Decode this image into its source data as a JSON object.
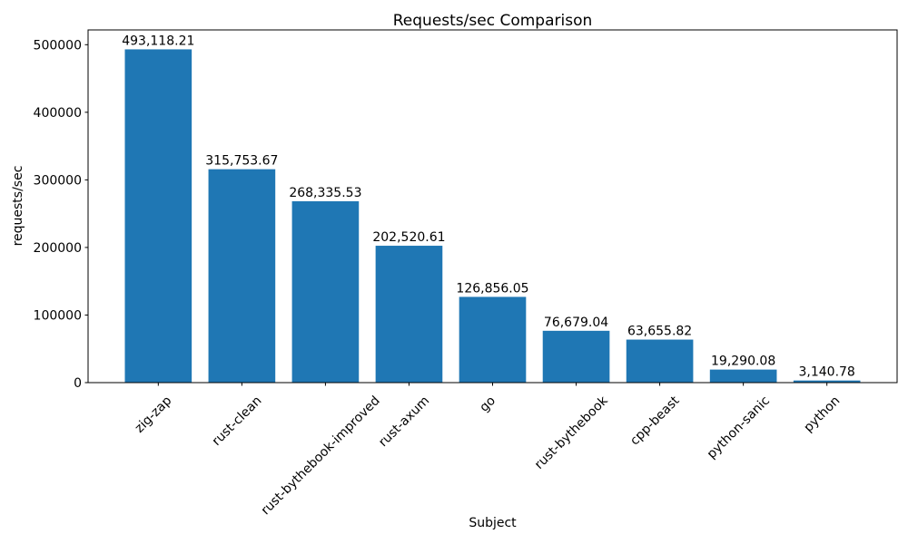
{
  "chart_data": {
    "type": "bar",
    "title": "Requests/sec Comparison",
    "xlabel": "Subject",
    "ylabel": "requests/sec",
    "categories": [
      "zig-zap",
      "rust-clean",
      "rust-bythebook-improved",
      "rust-axum",
      "go",
      "rust-bythebook",
      "cpp-beast",
      "python-sanic",
      "python"
    ],
    "values": [
      493118.21,
      315753.67,
      268335.53,
      202520.61,
      126856.05,
      76679.04,
      63655.82,
      19290.08,
      3140.78
    ],
    "value_labels": [
      "493,118.21",
      "315,753.67",
      "268,335.53",
      "202,520.61",
      "126,856.05",
      "76,679.04",
      "63,655.82",
      "19,290.08",
      "3,140.78"
    ],
    "ytick_values": [
      0,
      100000,
      200000,
      300000,
      400000,
      500000
    ],
    "ytick_labels": [
      "0",
      "100000",
      "200000",
      "300000",
      "400000",
      "500000"
    ],
    "ylim": [
      0,
      521870
    ],
    "xtick_rotation_deg": 45,
    "grid": false,
    "legend": null,
    "bar_color": "#1f77b4",
    "text_color": "#000000",
    "spine_color": "#000000",
    "background_color": "#ffffff"
  }
}
